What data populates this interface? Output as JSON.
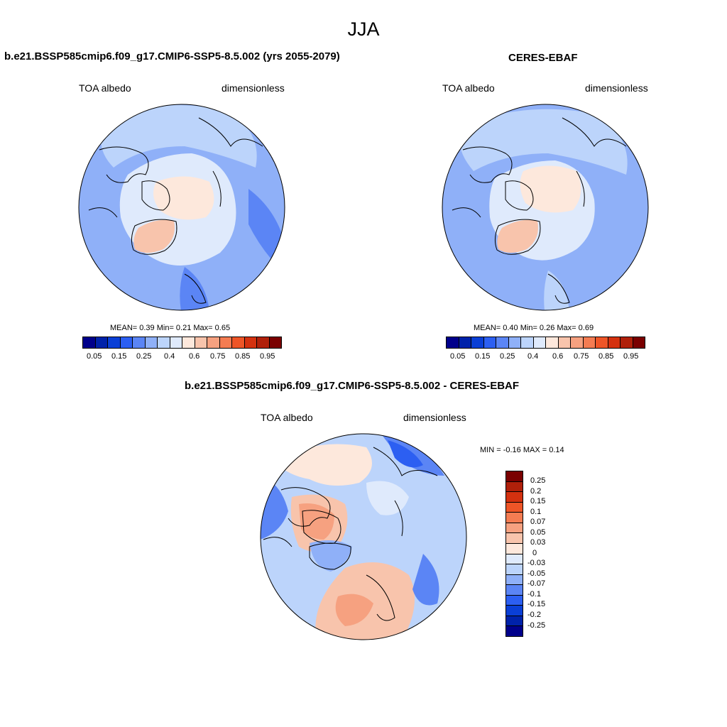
{
  "figure": {
    "season": "JJA"
  },
  "panels": [
    {
      "title": "b.e21.BSSP585cmip6.f09_g17.CMIP6-SSP5-8.5.002 (yrs 2055-2079)",
      "variable": "TOA albedo",
      "units": "dimensionless",
      "stats": "MEAN=   0.39  Min=   0.21  Max=   0.65"
    },
    {
      "title": "CERES-EBAF",
      "variable": "TOA albedo",
      "units": "dimensionless",
      "stats": "MEAN=   0.40  Min=   0.26  Max=   0.69"
    },
    {
      "title": "b.e21.BSSP585cmip6.f09_g17.CMIP6-SSP5-8.5.002 - CERES-EBAF",
      "variable": "TOA albedo",
      "units": "dimensionless",
      "stats": "MIN =  -0.16 MAX =   0.14"
    }
  ],
  "colorbar_abs": {
    "ticks": [
      "0.05",
      "0.15",
      "0.25",
      "0.4",
      "0.6",
      "0.75",
      "0.85",
      "0.95"
    ],
    "colors": [
      "#00008b",
      "#0022aa",
      "#0a3fd6",
      "#2c5ff2",
      "#5b85f5",
      "#8fb0f8",
      "#bcd4fb",
      "#dfeafc",
      "#fde8dc",
      "#f8c4ac",
      "#f6a180",
      "#f47c52",
      "#ee5527",
      "#d4310f",
      "#b0200a",
      "#7a0000"
    ]
  },
  "colorbar_diff": {
    "ticks": [
      "0.25",
      "0.2",
      "0.15",
      "0.1",
      "0.07",
      "0.05",
      "0.03",
      "0",
      "-0.03",
      "-0.05",
      "-0.07",
      "-0.1",
      "-0.15",
      "-0.2",
      "-0.25"
    ],
    "colors": [
      "#7a0000",
      "#b0200a",
      "#d4310f",
      "#ee5527",
      "#f47c52",
      "#f6a180",
      "#f8c4ac",
      "#fde8dc",
      "#dfeafc",
      "#bcd4fb",
      "#8fb0f8",
      "#5b85f5",
      "#2c5ff2",
      "#0a3fd6",
      "#0022aa",
      "#00008b"
    ]
  }
}
